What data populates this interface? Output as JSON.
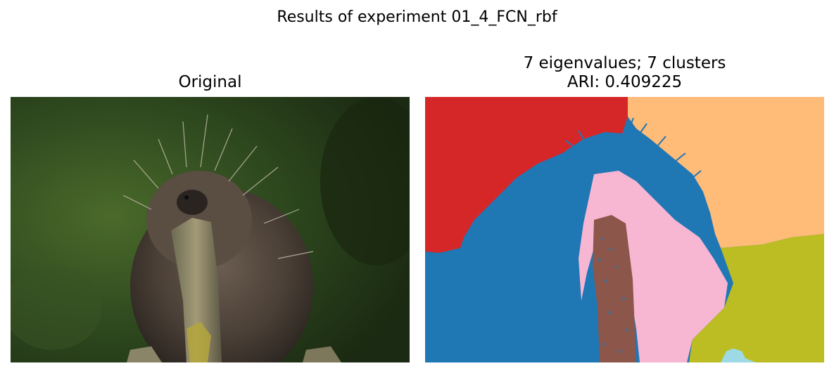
{
  "figure": {
    "suptitle": "Results of experiment 01_4_FCN_rbf"
  },
  "left_panel": {
    "title": "Original"
  },
  "right_panel": {
    "title_line1": "7 eigenvalues; 7 clusters",
    "title_line2": "ARI: 0.409225",
    "clusters": 7,
    "ari": 0.409225,
    "cluster_colors": [
      "#1f77b4",
      "#d62728",
      "#ffbb78",
      "#bcbd22",
      "#f7b6d2",
      "#8c564b",
      "#9edae5"
    ]
  }
}
